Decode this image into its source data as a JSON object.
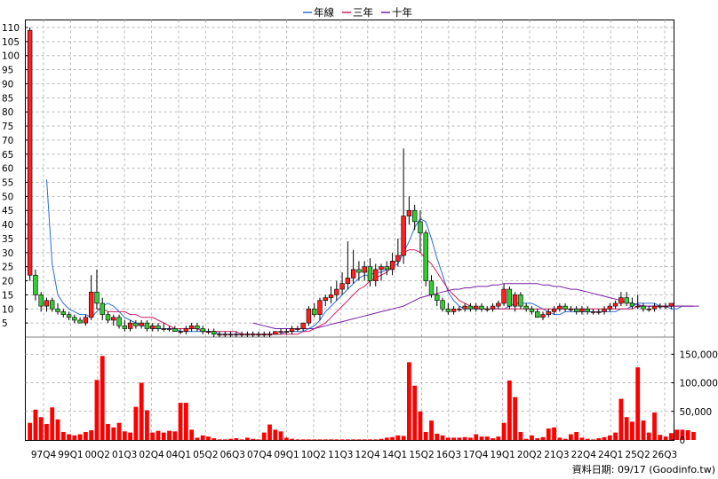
{
  "legend": {
    "items": [
      {
        "label": "年線",
        "color": "#2a6fdb"
      },
      {
        "label": "三年",
        "color": "#d81b60"
      },
      {
        "label": "十年",
        "color": "#7a1fa2"
      }
    ]
  },
  "footer": {
    "text": "資料日期: 09/17  (Goodinfo.tw)"
  },
  "chart_data": {
    "type": "candlestick+bar",
    "price_axis": {
      "min": 0,
      "max": 110,
      "ticks": [
        5,
        10,
        15,
        20,
        25,
        30,
        35,
        40,
        45,
        50,
        55,
        60,
        65,
        70,
        75,
        80,
        85,
        90,
        95,
        100,
        105,
        110
      ],
      "tick_labels": [
        "5",
        "10",
        "15",
        "20",
        "25",
        "30",
        "35",
        "40",
        "45",
        "50",
        "55",
        "60",
        "65",
        "70",
        "75",
        "80",
        "85",
        "90",
        "95",
        "100",
        "105",
        "110"
      ]
    },
    "volume_axis": {
      "min": 0,
      "max": 180000,
      "ticks": [
        0,
        50000,
        100000,
        150000
      ],
      "tick_labels": [
        "0",
        "50,000",
        "100,000",
        "150,000"
      ]
    },
    "x_axis": {
      "tick_labels": [
        "97Q4",
        "99Q1",
        "00Q2",
        "01Q3",
        "02Q4",
        "04Q1",
        "05Q2",
        "06Q3",
        "07Q4",
        "09Q1",
        "10Q2",
        "11Q3",
        "12Q4",
        "14Q1",
        "15Q2",
        "16Q3",
        "17Q4",
        "19Q1",
        "20Q2",
        "21Q3",
        "22Q4",
        "24Q1",
        "25Q2",
        "26Q3"
      ]
    },
    "grid": true,
    "legend_position": "top-center",
    "colors": {
      "up": "#ff2020",
      "down": "#33cc33",
      "volume": "#ff0000"
    },
    "candles": [
      [
        22,
        110,
        20,
        109
      ],
      [
        22,
        24,
        13,
        15
      ],
      [
        15,
        16,
        9,
        11
      ],
      [
        11,
        14,
        9,
        13
      ],
      [
        13,
        14,
        9,
        10
      ],
      [
        10,
        12,
        8,
        9
      ],
      [
        9,
        10,
        7,
        8
      ],
      [
        8,
        9,
        6,
        7
      ],
      [
        7,
        8,
        5,
        6
      ],
      [
        6,
        7,
        5,
        5
      ],
      [
        5,
        8,
        4,
        7
      ],
      [
        7,
        22,
        6,
        16
      ],
      [
        16,
        24,
        10,
        12
      ],
      [
        12,
        14,
        6,
        8
      ],
      [
        8,
        9,
        5,
        6
      ],
      [
        6,
        8,
        4,
        7
      ],
      [
        7,
        8,
        3,
        4
      ],
      [
        4,
        6,
        2,
        3
      ],
      [
        3,
        6,
        2,
        5
      ],
      [
        5,
        6,
        3,
        4
      ],
      [
        4,
        6,
        3,
        5
      ],
      [
        5,
        6,
        2,
        3
      ],
      [
        3,
        5,
        2,
        4
      ],
      [
        4,
        5,
        2,
        3
      ],
      [
        3,
        5,
        2,
        3
      ],
      [
        3,
        4,
        2,
        3
      ],
      [
        3,
        4,
        2,
        2
      ],
      [
        2,
        3,
        1,
        2
      ],
      [
        2,
        4,
        1,
        3
      ],
      [
        3,
        5,
        2,
        4
      ],
      [
        4,
        5,
        2,
        3
      ],
      [
        3,
        4,
        1,
        2
      ],
      [
        2,
        3,
        1,
        2
      ],
      [
        2,
        3,
        0,
        1
      ],
      [
        1,
        2,
        0,
        1
      ],
      [
        1,
        2,
        0,
        1
      ],
      [
        1,
        2,
        0,
        1
      ],
      [
        1,
        2,
        0,
        1
      ],
      [
        1,
        2,
        0,
        1
      ],
      [
        1,
        2,
        0,
        1
      ],
      [
        1,
        2,
        0,
        1
      ],
      [
        1,
        2,
        0,
        1
      ],
      [
        1,
        2,
        0,
        1
      ],
      [
        1,
        2,
        0,
        1
      ],
      [
        1,
        2,
        1,
        2
      ],
      [
        2,
        3,
        1,
        2
      ],
      [
        2,
        3,
        1,
        2
      ],
      [
        2,
        4,
        1,
        3
      ],
      [
        3,
        4,
        2,
        3
      ],
      [
        3,
        5,
        2,
        5
      ],
      [
        5,
        11,
        4,
        10
      ],
      [
        10,
        12,
        7,
        8
      ],
      [
        8,
        14,
        6,
        13
      ],
      [
        13,
        15,
        11,
        14
      ],
      [
        14,
        18,
        12,
        15
      ],
      [
        15,
        20,
        13,
        17
      ],
      [
        17,
        23,
        15,
        19
      ],
      [
        19,
        34,
        17,
        21
      ],
      [
        21,
        31,
        19,
        24
      ],
      [
        24,
        27,
        20,
        23
      ],
      [
        23,
        27,
        20,
        25
      ],
      [
        25,
        28,
        18,
        20
      ],
      [
        20,
        26,
        18,
        24
      ],
      [
        24,
        26,
        20,
        25
      ],
      [
        25,
        27,
        22,
        24
      ],
      [
        24,
        30,
        22,
        27
      ],
      [
        27,
        35,
        25,
        29
      ],
      [
        29,
        67,
        26,
        43
      ],
      [
        43,
        50,
        40,
        45
      ],
      [
        45,
        47,
        38,
        41
      ],
      [
        41,
        45,
        30,
        37
      ],
      [
        37,
        38,
        18,
        20
      ],
      [
        20,
        22,
        14,
        15
      ],
      [
        15,
        18,
        11,
        13
      ],
      [
        13,
        14,
        9,
        10
      ],
      [
        10,
        12,
        8,
        9
      ],
      [
        9,
        11,
        8,
        10
      ],
      [
        10,
        11,
        9,
        10
      ],
      [
        10,
        12,
        9,
        11
      ],
      [
        11,
        12,
        9,
        10
      ],
      [
        10,
        12,
        9,
        11
      ],
      [
        11,
        12,
        9,
        10
      ],
      [
        10,
        11,
        9,
        10
      ],
      [
        10,
        12,
        9,
        11
      ],
      [
        11,
        13,
        10,
        12
      ],
      [
        12,
        19,
        11,
        17
      ],
      [
        17,
        18,
        10,
        11
      ],
      [
        11,
        16,
        9,
        15
      ],
      [
        15,
        16,
        10,
        11
      ],
      [
        11,
        12,
        9,
        10
      ],
      [
        10,
        11,
        8,
        9
      ],
      [
        9,
        10,
        7,
        7
      ],
      [
        7,
        9,
        6,
        8
      ],
      [
        8,
        10,
        7,
        9
      ],
      [
        9,
        11,
        8,
        10
      ],
      [
        10,
        12,
        9,
        11
      ],
      [
        11,
        12,
        9,
        10
      ],
      [
        10,
        11,
        9,
        10
      ],
      [
        10,
        11,
        8,
        9
      ],
      [
        9,
        11,
        8,
        10
      ],
      [
        10,
        11,
        8,
        9
      ],
      [
        9,
        10,
        8,
        9
      ],
      [
        9,
        10,
        8,
        9
      ],
      [
        9,
        11,
        8,
        10
      ],
      [
        10,
        12,
        9,
        11
      ],
      [
        11,
        13,
        10,
        12
      ],
      [
        12,
        16,
        11,
        14
      ],
      [
        14,
        16,
        11,
        12
      ],
      [
        12,
        14,
        10,
        11
      ],
      [
        11,
        15,
        10,
        11
      ],
      [
        11,
        12,
        9,
        10
      ],
      [
        10,
        11,
        9,
        10
      ],
      [
        10,
        12,
        9,
        11
      ],
      [
        11,
        12,
        10,
        11
      ],
      [
        11,
        12,
        10,
        11
      ],
      [
        11,
        12,
        10,
        12
      ]
    ],
    "volume": [
      30000,
      53000,
      40000,
      28000,
      57000,
      36000,
      14000,
      10000,
      8000,
      10000,
      14000,
      17000,
      105000,
      147000,
      28000,
      22000,
      30000,
      15000,
      13000,
      58000,
      100000,
      52000,
      13000,
      16000,
      13000,
      16000,
      15000,
      65000,
      65000,
      18000,
      4000,
      8000,
      6000,
      3000,
      1000,
      1000,
      2000,
      3000,
      1000,
      4000,
      2000,
      1000,
      13000,
      27000,
      18000,
      15000,
      4000,
      2000,
      1000,
      1000,
      1000,
      1000,
      1000,
      1000,
      1000,
      1000,
      1000,
      1000,
      1000,
      1000,
      1000,
      1000,
      1000,
      2000,
      4000,
      5000,
      8000,
      7000,
      136000,
      95000,
      50000,
      14000,
      34000,
      11000,
      8000,
      4000,
      4000,
      4000,
      5000,
      4000,
      10000,
      6000,
      6000,
      3000,
      6000,
      30000,
      104000,
      75000,
      14000,
      2000,
      8000,
      3000,
      5000,
      20000,
      22000,
      4000,
      2000,
      10000,
      14000,
      4000,
      2000,
      1000,
      3000,
      5000,
      8000,
      13000,
      72000,
      40000,
      32000,
      127000,
      34000,
      13000,
      48000,
      9000,
      6000,
      12000,
      18000,
      18000,
      17000,
      14000
    ],
    "series": [
      {
        "name": "年線",
        "values": [
          null,
          null,
          null,
          56,
          26,
          15,
          12,
          10,
          9,
          8,
          8,
          7,
          9,
          11,
          12,
          11,
          9,
          7,
          6,
          5,
          4,
          4,
          3,
          3,
          3,
          3,
          3,
          2,
          2,
          2,
          2,
          2,
          2,
          2,
          1,
          1,
          1,
          1,
          1,
          1,
          1,
          1,
          1,
          1,
          1,
          1,
          2,
          2,
          2,
          2,
          3,
          4,
          6,
          9,
          11,
          13,
          15,
          17,
          19,
          21,
          22,
          22,
          23,
          23,
          24,
          25,
          26,
          30,
          34,
          39,
          42,
          41,
          35,
          28,
          22,
          16,
          13,
          11,
          10,
          10,
          10,
          10,
          10,
          10,
          10,
          10,
          11,
          12,
          12,
          12,
          12,
          11,
          10,
          9,
          8,
          8,
          9,
          9,
          9,
          9,
          9,
          9,
          9,
          9,
          9,
          9,
          10,
          10,
          11,
          12,
          12,
          12,
          12,
          11,
          11,
          10,
          10,
          11,
          11,
          11
        ]
      },
      {
        "name": "三年",
        "values": [
          null,
          null,
          null,
          null,
          null,
          null,
          null,
          null,
          null,
          null,
          null,
          null,
          10,
          10,
          9,
          9,
          9,
          9,
          8,
          8,
          7,
          7,
          7,
          6,
          5,
          4,
          3,
          3,
          3,
          3,
          3,
          2,
          2,
          2,
          2,
          2,
          2,
          2,
          1,
          1,
          1,
          1,
          1,
          1,
          1,
          1,
          1,
          1,
          1,
          2,
          2,
          3,
          4,
          5,
          7,
          9,
          11,
          13,
          15,
          17,
          18,
          20,
          21,
          22,
          23,
          25,
          28,
          30,
          31,
          31,
          30,
          28,
          26,
          23,
          20,
          17,
          15,
          13,
          12,
          11,
          10,
          10,
          10,
          10,
          10,
          10,
          10,
          10,
          10,
          10,
          10,
          10,
          10,
          10,
          10,
          10,
          10,
          10,
          10,
          10,
          10,
          10,
          10,
          10,
          10,
          10,
          10,
          10,
          10,
          11,
          11,
          11,
          11,
          11,
          11,
          11,
          11,
          11,
          11,
          11
        ]
      },
      {
        "name": "十年",
        "values": [
          null,
          null,
          null,
          null,
          null,
          null,
          null,
          null,
          null,
          null,
          null,
          null,
          null,
          null,
          null,
          null,
          null,
          null,
          null,
          null,
          null,
          null,
          null,
          null,
          null,
          null,
          null,
          null,
          null,
          null,
          null,
          null,
          null,
          null,
          null,
          null,
          null,
          null,
          null,
          null,
          5,
          4.5,
          4,
          3.5,
          3,
          3,
          3,
          3,
          3,
          3,
          3,
          3,
          3.5,
          4,
          4.5,
          5,
          5.5,
          6,
          6.5,
          7,
          7.5,
          8,
          8.5,
          9,
          9.5,
          10,
          10.5,
          11,
          12,
          13,
          14,
          14.5,
          15,
          15.5,
          16,
          16.5,
          17,
          17,
          17.5,
          17.5,
          18,
          18,
          18,
          18.5,
          18.5,
          19,
          19,
          19,
          19,
          19,
          19,
          19,
          18.5,
          18.5,
          18,
          18,
          17.5,
          17,
          17,
          16.5,
          16,
          15.5,
          15,
          14.5,
          14,
          13.5,
          13,
          12.5,
          12,
          11.5,
          11,
          11,
          11,
          11,
          11,
          11,
          11,
          11,
          11,
          11,
          11
        ]
      }
    ]
  }
}
